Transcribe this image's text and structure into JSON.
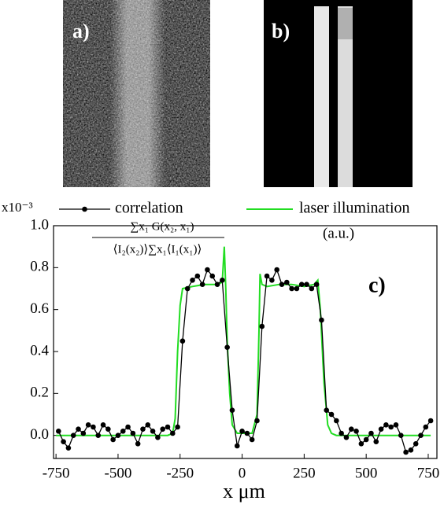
{
  "panels": {
    "a": {
      "label": "a)"
    },
    "b": {
      "label": "b)"
    }
  },
  "chart_data": {
    "type": "line",
    "x_label": "x μm",
    "y_scale_label": "x10⁻³",
    "formula_numerator": "∑x₁ G(x₂, x₁)",
    "formula_denominator": "⟨I₂(x₂)⟩∑x₁⟨I₁(x₁)⟩",
    "unit_note": "(a.u.)",
    "panel_label": "c)",
    "xlim": [
      -760,
      785
    ],
    "ylim": [
      -0.11,
      1.0
    ],
    "xticks": [
      -750,
      -500,
      -250,
      0,
      250,
      500,
      750
    ],
    "yticks": [
      {
        "value": 0,
        "label": "0.0"
      },
      {
        "value": 0.2,
        "label": "0.2"
      },
      {
        "value": 0.4,
        "label": "0.4"
      },
      {
        "value": 0.6,
        "label": "0.6"
      },
      {
        "value": 0.8,
        "label": "0.8"
      },
      {
        "value": 1.0,
        "label": "1.0"
      }
    ],
    "series": [
      {
        "name": "correlation",
        "color": "#000000",
        "markers": true,
        "x": [
          -740,
          -720,
          -700,
          -680,
          -660,
          -640,
          -620,
          -600,
          -580,
          -560,
          -540,
          -520,
          -500,
          -480,
          -460,
          -440,
          -420,
          -400,
          -380,
          -360,
          -340,
          -320,
          -300,
          -280,
          -260,
          -240,
          -220,
          -200,
          -180,
          -160,
          -140,
          -120,
          -100,
          -80,
          -60,
          -40,
          -20,
          0,
          20,
          40,
          60,
          80,
          100,
          120,
          140,
          160,
          180,
          200,
          220,
          240,
          260,
          280,
          300,
          320,
          340,
          360,
          380,
          400,
          420,
          440,
          460,
          480,
          500,
          520,
          540,
          560,
          580,
          600,
          620,
          640,
          660,
          680,
          700,
          720,
          740,
          760
        ],
        "values": [
          0.02,
          -0.03,
          -0.06,
          0.0,
          0.03,
          0.01,
          0.05,
          0.04,
          0.0,
          0.05,
          0.03,
          -0.02,
          0.0,
          0.02,
          0.04,
          0.01,
          -0.04,
          0.03,
          0.05,
          0.02,
          -0.01,
          0.03,
          0.04,
          0.01,
          0.04,
          0.45,
          0.7,
          0.74,
          0.76,
          0.72,
          0.79,
          0.76,
          0.72,
          0.74,
          0.42,
          0.12,
          -0.05,
          0.02,
          0.01,
          -0.02,
          0.07,
          0.52,
          0.76,
          0.74,
          0.79,
          0.72,
          0.73,
          0.7,
          0.7,
          0.72,
          0.72,
          0.7,
          0.72,
          0.55,
          0.12,
          0.1,
          0.07,
          0.01,
          -0.01,
          0.03,
          0.02,
          -0.04,
          -0.02,
          0.01,
          -0.03,
          0.03,
          0.05,
          0.04,
          0.05,
          0.0,
          -0.08,
          -0.07,
          -0.04,
          0.0,
          0.04,
          0.07
        ]
      },
      {
        "name": "laser illumination",
        "color": "#22dd22",
        "markers": false,
        "x": [
          -750,
          -300,
          -280,
          -270,
          -260,
          -250,
          -240,
          -200,
          -150,
          -100,
          -80,
          -72,
          -66,
          -60,
          -50,
          -40,
          -20,
          40,
          60,
          68,
          72,
          80,
          100,
          150,
          200,
          250,
          290,
          305,
          315,
          330,
          345,
          360,
          380,
          760
        ],
        "values": [
          0,
          0,
          0.01,
          0.08,
          0.4,
          0.62,
          0.7,
          0.71,
          0.72,
          0.72,
          0.73,
          0.9,
          0.7,
          0.45,
          0.2,
          0.05,
          0.01,
          0.01,
          0.1,
          0.5,
          0.77,
          0.72,
          0.71,
          0.72,
          0.72,
          0.71,
          0.72,
          0.74,
          0.6,
          0.25,
          0.05,
          0.01,
          0,
          0
        ]
      }
    ]
  }
}
